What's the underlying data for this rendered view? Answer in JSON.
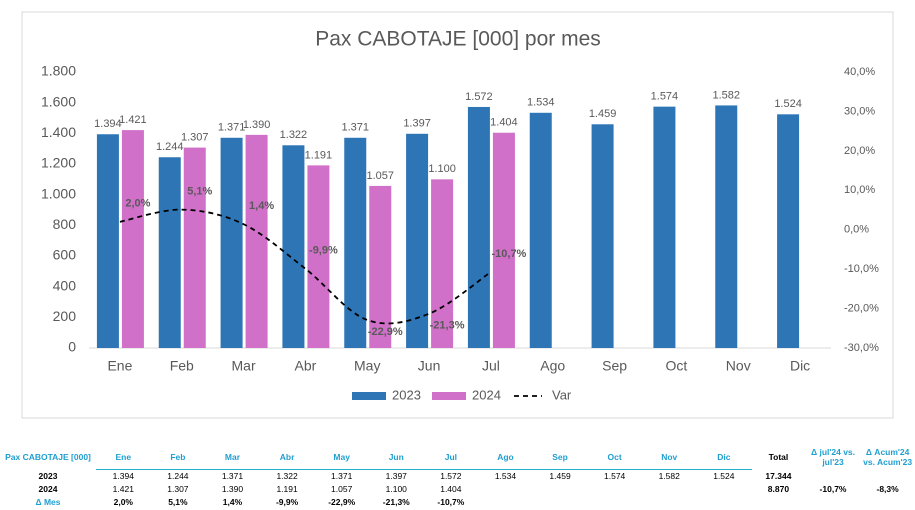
{
  "chart_data": {
    "type": "bar",
    "title": "Pax CABOTAJE [000] por mes",
    "categories": [
      "Ene",
      "Feb",
      "Mar",
      "Abr",
      "May",
      "Jun",
      "Jul",
      "Ago",
      "Sep",
      "Oct",
      "Nov",
      "Dic"
    ],
    "series": [
      {
        "name": "2023",
        "color": "#2e75b6",
        "values": [
          1394,
          1244,
          1371,
          1322,
          1371,
          1397,
          1572,
          1534,
          1459,
          1574,
          1582,
          1524
        ],
        "value_labels": [
          "1.394",
          "1.244",
          "1.371",
          "1.322",
          "1.371",
          "1.397",
          "1.572",
          "1.534",
          "1.459",
          "1.574",
          "1.582",
          "1.524"
        ]
      },
      {
        "name": "2024",
        "color": "#d070c8",
        "values": [
          1421,
          1307,
          1390,
          1191,
          1057,
          1100,
          1404,
          null,
          null,
          null,
          null,
          null
        ],
        "value_labels": [
          "1.421",
          "1.307",
          "1.390",
          "1.191",
          "1.057",
          "1.100",
          "1.404",
          null,
          null,
          null,
          null,
          null
        ]
      },
      {
        "name": "Var",
        "type": "line",
        "axis": "y2",
        "color": "#000000",
        "values": [
          2.0,
          5.1,
          1.4,
          -9.9,
          -22.9,
          -21.3,
          -10.7,
          null,
          null,
          null,
          null,
          null
        ],
        "value_labels": [
          "2,0%",
          "5,1%",
          "1,4%",
          "-9,9%",
          "-22,9%",
          "-21,3%",
          "-10,7%",
          null,
          null,
          null,
          null,
          null
        ]
      }
    ],
    "ylim": [
      0,
      1800
    ],
    "yticks": [
      0,
      200,
      400,
      600,
      800,
      {
        "value": 1000,
        "label": "1.000"
      },
      {
        "value": 1200,
        "label": "1.200"
      },
      {
        "value": 1400,
        "label": "1.400"
      },
      {
        "value": 1600,
        "label": "1.600"
      },
      {
        "value": 1800,
        "label": "1.800"
      }
    ],
    "y2lim": [
      -30,
      40
    ],
    "y2ticks": [
      {
        "value": -30,
        "label": "-30,0%"
      },
      {
        "value": -20,
        "label": "-20,0%"
      },
      {
        "value": -10,
        "label": "-10,0%"
      },
      {
        "value": 0,
        "label": "0,0%"
      },
      {
        "value": 10,
        "label": "10,0%"
      },
      {
        "value": 20,
        "label": "20,0%"
      },
      {
        "value": 30,
        "label": "30,0%"
      },
      {
        "value": 40,
        "label": "40,0%"
      }
    ],
    "grid": false,
    "legend": "bottom"
  },
  "table": {
    "header": [
      "Pax CABOTAJE [000]",
      "Ene",
      "Feb",
      "Mar",
      "Abr",
      "May",
      "Jun",
      "Jul",
      "Ago",
      "Sep",
      "Oct",
      "Nov",
      "Dic",
      "Total",
      "Δ jul'24 vs. jul'23",
      "Δ Acum'24 vs. Acum'23"
    ],
    "rows": [
      [
        "2023",
        "1.394",
        "1.244",
        "1.371",
        "1.322",
        "1.371",
        "1.397",
        "1.572",
        "1.534",
        "1.459",
        "1.574",
        "1.582",
        "1.524",
        "17.344",
        null,
        null
      ],
      [
        "2024",
        "1.421",
        "1.307",
        "1.390",
        "1.191",
        "1.057",
        "1.100",
        "1.404",
        null,
        null,
        null,
        null,
        null,
        "8.870",
        "-10,7%",
        "-8,3%"
      ],
      [
        "Δ Mes",
        "2,0%",
        "5,1%",
        "1,4%",
        "-9,9%",
        "-22,9%",
        "-21,3%",
        "-10,7%",
        null,
        null,
        null,
        null,
        null,
        null,
        null,
        null
      ]
    ]
  }
}
